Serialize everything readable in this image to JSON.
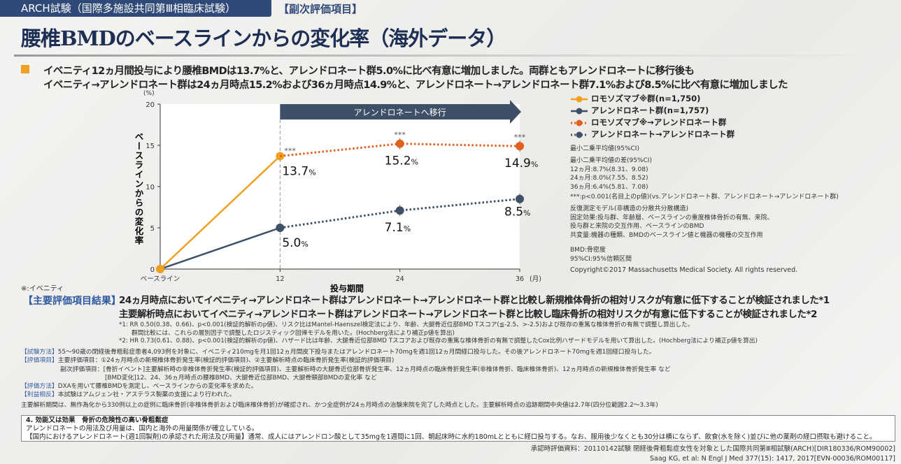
{
  "header": {
    "study": "ARCH試験（国際多施設共同第Ⅲ相臨床試験）",
    "category": "【副次評価項目】",
    "title": "腰椎BMDのベースラインからの変化率（海外データ）"
  },
  "lead": [
    "イベニティ12ヵ月間投与により腰椎BMDは13.7%と、アレンドロネート群5.0%に比べ有意に増加しました。両群ともアレンドロネートに移行後も",
    "イベニティ→アレンドロネート群は24ヵ月時点15.2%および36ヵ月時点14.9%と、アレンドロネート→アレンドロネート群7.1%および8.5%に比べ有意に増加しました"
  ],
  "chart_data": {
    "type": "line",
    "ylabel": "ベースラインからの変化率",
    "yunit": "(%)",
    "xlabel": "投与期間",
    "xunit": "(月)",
    "ylim": [
      0,
      20
    ],
    "yticks": [
      0,
      5,
      10,
      15,
      20
    ],
    "xticks": [
      {
        "v": 0,
        "label": "ベースライン"
      },
      {
        "v": 12,
        "label": "12"
      },
      {
        "v": 24,
        "label": "24"
      },
      {
        "v": 36,
        "label": "36"
      }
    ],
    "banner": "アレンドロネートへ移行",
    "banner_from": 12,
    "series": [
      {
        "name": "ロモソズマブ※群(n=1,750)",
        "color": "#f0a020",
        "dash": false,
        "x": [
          0,
          12
        ],
        "y": [
          0,
          13.7
        ]
      },
      {
        "name": "アレンドロネート群(n=1,757)",
        "color": "#3d5068",
        "dash": false,
        "x": [
          0,
          12
        ],
        "y": [
          0,
          5.0
        ]
      },
      {
        "name": "ロモソズマブ※→アレンドロネート群",
        "color": "#e0601e",
        "dash": true,
        "x": [
          12,
          24,
          36
        ],
        "y": [
          13.7,
          15.2,
          14.9
        ]
      },
      {
        "name": "アレンドロネート→アレンドロネート群",
        "color": "#3d5068",
        "dash": true,
        "x": [
          12,
          24,
          36
        ],
        "y": [
          5.0,
          7.1,
          8.5
        ]
      }
    ],
    "data_labels": [
      {
        "x": 12,
        "y": 13.7,
        "text": "13.7",
        "sig": "***"
      },
      {
        "x": 24,
        "y": 15.2,
        "text": "15.2",
        "sig": "***"
      },
      {
        "x": 36,
        "y": 14.9,
        "text": "14.9",
        "sig": "***"
      },
      {
        "x": 12,
        "y": 5.0,
        "text": "5.0"
      },
      {
        "x": 24,
        "y": 7.1,
        "text": "7.1"
      },
      {
        "x": 36,
        "y": 8.5,
        "text": "8.5"
      }
    ],
    "pct": "%",
    "grid": false,
    "legend": "right"
  },
  "notes": {
    "lsmean": "最小二乗平均値(95%CI)",
    "diff": [
      "最小二乗平均値の差(95%CI)",
      "12ヵ月:8.7%(8.31、9.08)",
      "24ヵ月:8.0%(7.55、8.52)",
      "36ヵ月:6.4%(5.81、7.08)"
    ],
    "p": "***:p<0.001(名目上のp値)(vs.アレンドロネート群、アレンドロネート→アレンドロネート群)",
    "model": [
      "反復測定モデル(非構造の分散共分散構造)",
      "固定効果:投与群、年齢層、ベースラインの重度椎体骨折の有無、来院、",
      "投与群と来院の交互作用、ベースラインのBMD",
      "共変量:機器の種類、BMDのベースライン値と機器の機種の交互作用"
    ],
    "abbr": [
      "BMD:骨密度",
      "95%CI:95%信頼区間"
    ],
    "copyright": "Copyright©2017 Massachusetts Medical Society. All rights reserved."
  },
  "asterisk_note": "※:イベニティ",
  "results": {
    "tag": "【主要評価項目結果】",
    "lines": [
      "24ヵ月時点においてイベニティ→アレンドロネート群はアレンドロネート→アレンドロネート群と比較し新規椎体骨折の相対リスクが有意に低下することが検証されました*1",
      "主要解析時点においてイベニティ→アレンドロネート群はアレンドロネート→アレンドロネート群と比較し臨床骨折の相対リスクが有意に低下することが検証されました*2"
    ],
    "footnotes": [
      "*1: RR 0.50(0.38、0.66)、p<0.001(検証的解析のp値)、リスク比はMantel-Haenszel検定法により、年齢、大腿骨近位部BMD Tスコア(≦-2.5、>-2.5)および既存の重篤な椎体骨折の有無で調整し算出した。",
      "群間比較には、これらの層別因子で調整したロジスティック回帰モデルを用いた。(Hochberg法により補正p値を算出)",
      "*2: HR 0.73(0.61、0.88)、p<0.001(検証的解析のp値)、ハザード比は年齢、大腿骨近位部BMD Tスコアおよび既存の重篤な椎体骨折の有無で調整したCox比例ハザードモデルを用いて算出した。(Hochberg法により補正p値を算出)"
    ]
  },
  "method": [
    {
      "tag": "【試験方法】",
      "text": "55～90歳の閉経後骨粗鬆症患者4,093例を対象に、イベニティ210mgを月1回12ヵ月間皮下投与またはアレンドロネート70mgを週1回12ヵ月間経口投与した。その後アレンドロネート70mgを週1回経口投与した。"
    },
    {
      "tag": "【評価項目】",
      "text": "主要評価項目：①24ヵ月時点の新規椎体骨折発生率(検証的評価項目)、②主要解析時点の臨床骨折発生率(検証的評価項目)"
    },
    {
      "tag": "",
      "text": "副次評価項目：[骨折イベント]主要解析時の非椎体骨折発生率(検証的評価項目)、主要解析時の大腿骨近位部骨折発生率、12ヵ月時点の臨床骨折発生率(非椎体骨折、臨床椎体骨折)、12ヵ月時点の新規椎体骨折発生率 など"
    },
    {
      "tag": "",
      "text": "[BMD変化]12、24、36ヵ月時点の腰椎BMD、大腿骨近位部BMD、大腿骨頸部BMDの変化率 など"
    },
    {
      "tag": "【評価方法】",
      "text": "DXAを用いて腰椎BMDを測定し、ベースラインからの変化率を求めた。"
    },
    {
      "tag": "【利益相反】",
      "text": "本試験はアムジェン社・アステラス製薬の支援により行われた。"
    }
  ],
  "analysis_period": "主要解析期間は、無作為化から330例以上の症例に臨床骨折(非椎体骨折および臨床椎体骨折)が確認され、かつ全症例が24ヵ月時点の治験来院を完了した時点とした。主要解析時点の追跡期間中央値は2.7年(四分位範囲2.2～3.3年)",
  "box": {
    "title": "4. 効能又は効果　骨折の危険性の高い骨粗鬆症",
    "line1": "アレンドロネートの用法及び用量は、国内と海外の用量関係が確立している。",
    "line2": "【国内におけるアレンドロネート(週1回製剤)の承認された用法及び用量】通常、成人にはアレンドロン酸として35mgを1週間に1回、朝起床時に水約180mLとともに経口投与する。なお、服用後少なくとも30分は横にならず、飲食(水を除く)並びに他の薬剤の経口摂取も避けること。"
  },
  "sources": [
    "承認時評価資料：20110142試験 閉経後骨粗鬆症女性を対象とした国際共同第Ⅲ相試験(ARCH)[DIR180336/ROM90002]",
    "Saag KG, et al: N Engl J Med 377(15): 1417, 2017[EVN-00036/ROM00117]"
  ]
}
